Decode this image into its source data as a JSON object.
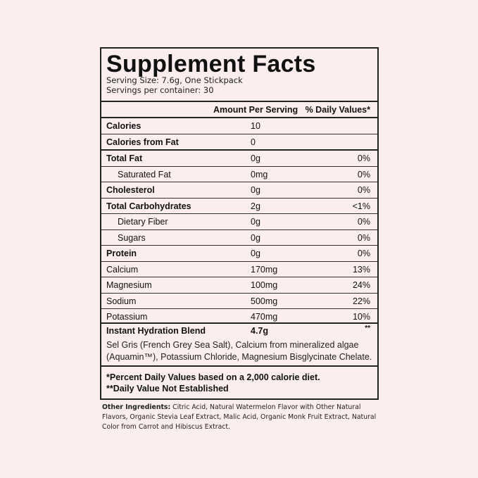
{
  "title": "Supplement Facts",
  "serving_size": "Serving Size: 7.6g, One Stickpack",
  "servings_per_container": "Servings per container: 30",
  "header": {
    "amount": "Amount Per Serving",
    "daily": "% Daily Values*"
  },
  "rows": [
    {
      "label": "Calories",
      "amount": "10",
      "daily": "",
      "bold": true
    },
    {
      "label": "Calories from Fat",
      "amount": "0",
      "daily": "",
      "bold": true
    },
    {
      "label": "Total Fat",
      "amount": "0g",
      "daily": "0%",
      "bold": true
    },
    {
      "label": "Saturated Fat",
      "amount": "0mg",
      "daily": "0%",
      "sub": true
    },
    {
      "label": "Cholesterol",
      "amount": "0g",
      "daily": "0%",
      "bold": true
    },
    {
      "label": "Total Carbohydrates",
      "amount": "2g",
      "daily": "<1%",
      "bold": true
    },
    {
      "label": "Dietary Fiber",
      "amount": "0g",
      "daily": "0%",
      "sub": true
    },
    {
      "label": "Sugars",
      "amount": "0g",
      "daily": "0%",
      "sub": true
    },
    {
      "label": "Protein",
      "amount": "0g",
      "daily": "0%",
      "bold": true
    },
    {
      "label": "Calcium",
      "amount": "170mg",
      "daily": "13%"
    },
    {
      "label": "Magnesium",
      "amount": "100mg",
      "daily": "24%"
    },
    {
      "label": "Sodium",
      "amount": "500mg",
      "daily": "22%"
    },
    {
      "label": "Potassium",
      "amount": "470mg",
      "daily": "10%"
    }
  ],
  "blend": {
    "label": "Instant Hydration Blend",
    "amount": "4.7g",
    "daily": "**",
    "description": "Sel Gris (French Grey Sea Salt), Calcium from mineralized algae (Aquamin™), Potassium Chloride, Magnesium Bisglycinate Chelate."
  },
  "footnotes": [
    "*Percent Daily Values based on a 2,000 calorie diet.",
    "**Daily Value Not Established"
  ],
  "other_ingredients": {
    "label": "Other Ingredients:",
    "text": " Citric Acid, Natural Watermelon Flavor with Other Natural Flavors, Organic Stevia Leaf Extract, Malic Acid, Organic Monk Fruit Extract, Natural Color from Carrot and Hibiscus Extract."
  }
}
